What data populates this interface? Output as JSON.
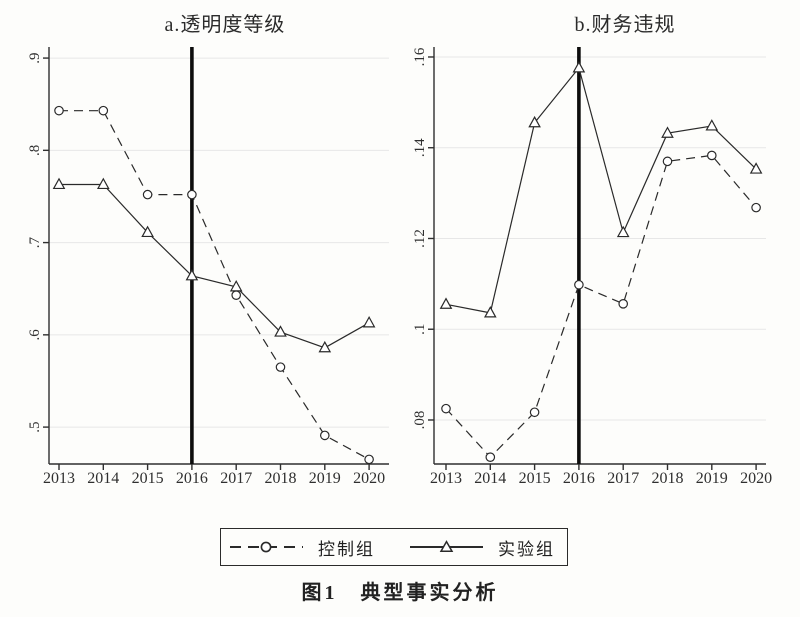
{
  "figure": {
    "caption": "图1　典型事实分析",
    "legend": {
      "control_label": "控制组",
      "treatment_label": "实验组"
    },
    "colors": {
      "line": "#2a2a2a",
      "axis": "#2f2f2f",
      "text": "#2f2f2f",
      "grid": "#e7e7e7",
      "event_line": "#0d0d0d",
      "marker_fill": "#ffffff",
      "background": "#fdfdfb"
    }
  },
  "chart_data": [
    {
      "type": "line",
      "title": "a.透明度等级",
      "xlabel": "",
      "ylabel": "",
      "grid": true,
      "x": [
        "2013",
        "2014",
        "2015",
        "2016",
        "2017",
        "2018",
        "2019",
        "2020"
      ],
      "event_x": "2016",
      "ylim": [
        0.46,
        0.912
      ],
      "yticks": [
        {
          "value": 0.5,
          "label": ".5"
        },
        {
          "value": 0.6,
          "label": ".6"
        },
        {
          "value": 0.7,
          "label": ".7"
        },
        {
          "value": 0.8,
          "label": ".8"
        },
        {
          "value": 0.9,
          "label": ".9"
        }
      ],
      "series": [
        {
          "id": "control-group",
          "name": "控制组",
          "line_style": "dashed",
          "marker": "circle",
          "values": [
            0.843,
            0.843,
            0.752,
            0.752,
            0.643,
            0.565,
            0.491,
            0.465
          ]
        },
        {
          "id": "treatment-group",
          "name": "实验组",
          "line_style": "solid",
          "marker": "triangle",
          "values": [
            0.763,
            0.763,
            0.711,
            0.664,
            0.652,
            0.603,
            0.586,
            0.613
          ]
        }
      ]
    },
    {
      "type": "line",
      "title": "b.财务违规",
      "xlabel": "",
      "ylabel": "",
      "grid": true,
      "x": [
        "2013",
        "2014",
        "2015",
        "2016",
        "2017",
        "2018",
        "2019",
        "2020"
      ],
      "event_x": "2016",
      "ylim": [
        0.0703,
        0.1622
      ],
      "yticks": [
        {
          "value": 0.08,
          "label": ".08"
        },
        {
          "value": 0.1,
          "label": ".1"
        },
        {
          "value": 0.12,
          "label": ".12"
        },
        {
          "value": 0.14,
          "label": ".14"
        },
        {
          "value": 0.16,
          "label": ".16"
        }
      ],
      "series": [
        {
          "id": "control-group",
          "name": "控制组",
          "line_style": "dashed",
          "marker": "circle",
          "values": [
            0.0825,
            0.0718,
            0.0817,
            0.1098,
            0.1056,
            0.137,
            0.1383,
            0.1268
          ]
        },
        {
          "id": "treatment-group",
          "name": "实验组",
          "line_style": "solid",
          "marker": "triangle",
          "values": [
            0.1055,
            0.1036,
            0.1455,
            0.1576,
            0.1213,
            0.1432,
            0.1448,
            0.1353
          ]
        }
      ]
    }
  ]
}
